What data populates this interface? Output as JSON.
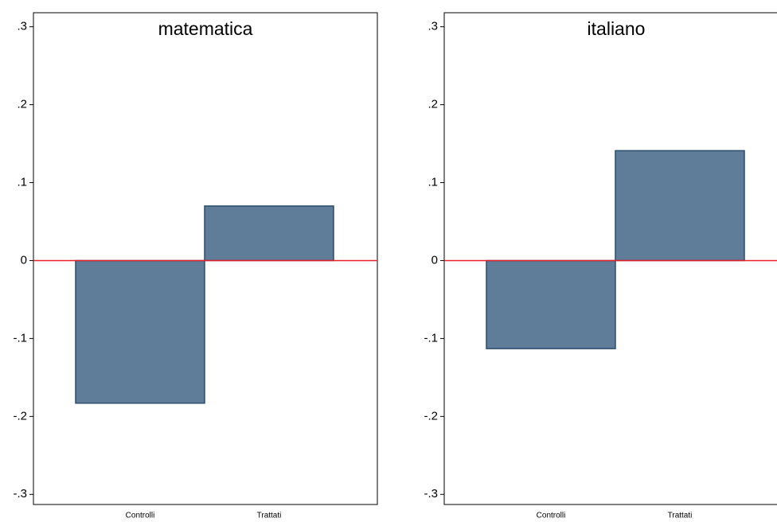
{
  "chart_data": [
    {
      "type": "bar",
      "title": "matematica",
      "categories": [
        "Controlli",
        "Trattati"
      ],
      "values": [
        -0.183,
        0.07
      ],
      "color": "#5f7d99",
      "edge_color": "#2a4d6e",
      "ylim": [
        -0.313,
        0.318
      ],
      "yticks": [
        {
          "value": -0.3,
          "label": "-.3"
        },
        {
          "value": -0.2,
          "label": "-.2"
        },
        {
          "value": -0.1,
          "label": "-.1"
        },
        0,
        {
          "value": 0.1,
          "label": ".1"
        },
        {
          "value": 0.2,
          "label": ".2"
        },
        {
          "value": 0.3,
          "label": ".3"
        }
      ],
      "reference_line": 0,
      "reference_color": "#e8202a"
    },
    {
      "type": "bar",
      "title": "italiano",
      "categories": [
        "Controlli",
        "Trattati"
      ],
      "values": [
        -0.113,
        0.141
      ],
      "color": "#5f7d99",
      "edge_color": "#2a4d6e",
      "ylim": [
        -0.313,
        0.318
      ],
      "yticks": [
        {
          "value": -0.3,
          "label": "-.3"
        },
        {
          "value": -0.2,
          "label": "-.2"
        },
        {
          "value": -0.1,
          "label": "-.1"
        },
        0,
        {
          "value": 0.1,
          "label": ".1"
        },
        {
          "value": 0.2,
          "label": ".2"
        },
        {
          "value": 0.3,
          "label": ".3"
        }
      ],
      "reference_line": 0,
      "reference_color": "#e8202a"
    }
  ]
}
